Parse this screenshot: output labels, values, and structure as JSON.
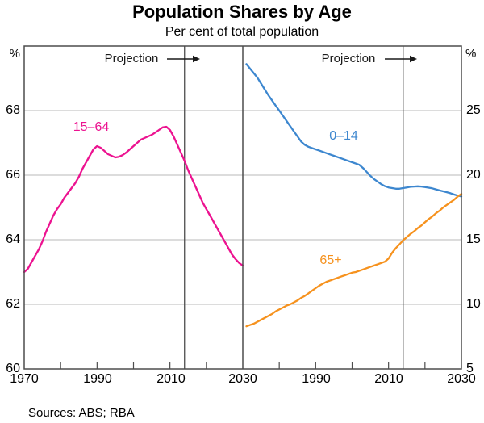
{
  "header": {
    "title": "Population Shares by Age",
    "subtitle": "Per cent of total population"
  },
  "footer": {
    "sources": "Sources: ABS; RBA"
  },
  "colors": {
    "frame": "#4d4d4d",
    "grid": "#b9b9b9",
    "projection_line": "#4d4d4d",
    "arrow": "#1a1a1a",
    "series_15_64": "#ec1390",
    "series_0_14": "#3d87cf",
    "series_65plus": "#f6921e"
  },
  "chart_data": [
    {
      "type": "line",
      "panel": "left",
      "unit": "%",
      "projection_label": "Projection",
      "projection_start": 2014,
      "xlim": [
        1970,
        2030
      ],
      "ylim": [
        60,
        70
      ],
      "y_gridlines": [
        62,
        64,
        66,
        68
      ],
      "y_tick_labels": [
        "68",
        "66",
        "64",
        "62",
        "60"
      ],
      "x_tick_labels": [
        "1970",
        "1990",
        "2010",
        "2030"
      ],
      "x_minor_ticks": [
        1980,
        1990,
        2000,
        2010,
        2020
      ],
      "series": [
        {
          "name": "15–64",
          "color": "#ec1390",
          "points": [
            [
              1970,
              63.0
            ],
            [
              1971,
              63.1
            ],
            [
              1972,
              63.3
            ],
            [
              1973,
              63.5
            ],
            [
              1974,
              63.7
            ],
            [
              1975,
              63.95
            ],
            [
              1976,
              64.25
            ],
            [
              1977,
              64.5
            ],
            [
              1978,
              64.75
            ],
            [
              1979,
              64.95
            ],
            [
              1980,
              65.1
            ],
            [
              1981,
              65.3
            ],
            [
              1982,
              65.45
            ],
            [
              1983,
              65.6
            ],
            [
              1984,
              65.75
            ],
            [
              1985,
              65.95
            ],
            [
              1986,
              66.2
            ],
            [
              1987,
              66.4
            ],
            [
              1988,
              66.6
            ],
            [
              1989,
              66.8
            ],
            [
              1990,
              66.9
            ],
            [
              1991,
              66.85
            ],
            [
              1992,
              66.75
            ],
            [
              1993,
              66.65
            ],
            [
              1994,
              66.6
            ],
            [
              1995,
              66.55
            ],
            [
              1996,
              66.57
            ],
            [
              1997,
              66.62
            ],
            [
              1998,
              66.7
            ],
            [
              1999,
              66.8
            ],
            [
              2000,
              66.9
            ],
            [
              2001,
              67.0
            ],
            [
              2002,
              67.1
            ],
            [
              2003,
              67.15
            ],
            [
              2004,
              67.2
            ],
            [
              2005,
              67.25
            ],
            [
              2006,
              67.32
            ],
            [
              2007,
              67.4
            ],
            [
              2008,
              67.48
            ],
            [
              2009,
              67.5
            ],
            [
              2010,
              67.4
            ],
            [
              2011,
              67.2
            ],
            [
              2012,
              66.95
            ],
            [
              2013,
              66.7
            ],
            [
              2014,
              66.45
            ],
            [
              2015,
              66.15
            ],
            [
              2016,
              65.9
            ],
            [
              2017,
              65.65
            ],
            [
              2018,
              65.4
            ],
            [
              2019,
              65.15
            ],
            [
              2020,
              64.95
            ],
            [
              2021,
              64.75
            ],
            [
              2022,
              64.55
            ],
            [
              2023,
              64.35
            ],
            [
              2024,
              64.15
            ],
            [
              2025,
              63.95
            ],
            [
              2026,
              63.75
            ],
            [
              2027,
              63.55
            ],
            [
              2028,
              63.4
            ],
            [
              2029,
              63.28
            ],
            [
              2030,
              63.2
            ]
          ]
        }
      ]
    },
    {
      "type": "line",
      "panel": "right",
      "unit": "%",
      "projection_label": "Projection",
      "projection_start": 2014,
      "xlim": [
        1970,
        2030
      ],
      "ylim": [
        5,
        30
      ],
      "y_gridlines": [
        10,
        15,
        20,
        25
      ],
      "y_tick_labels": [
        "25",
        "20",
        "15",
        "10",
        "5"
      ],
      "x_tick_labels": [
        "1990",
        "2010",
        "2030"
      ],
      "x_minor_ticks": [
        1980,
        1990,
        2000,
        2010,
        2020
      ],
      "series": [
        {
          "name": "0–14",
          "color": "#3d87cf",
          "points": [
            [
              1971,
              28.6
            ],
            [
              1972,
              28.25
            ],
            [
              1973,
              27.9
            ],
            [
              1974,
              27.55
            ],
            [
              1975,
              27.1
            ],
            [
              1976,
              26.65
            ],
            [
              1977,
              26.2
            ],
            [
              1978,
              25.8
            ],
            [
              1979,
              25.4
            ],
            [
              1980,
              25.0
            ],
            [
              1981,
              24.6
            ],
            [
              1982,
              24.2
            ],
            [
              1983,
              23.8
            ],
            [
              1984,
              23.4
            ],
            [
              1985,
              23.0
            ],
            [
              1986,
              22.6
            ],
            [
              1987,
              22.35
            ],
            [
              1988,
              22.2
            ],
            [
              1989,
              22.1
            ],
            [
              1990,
              22.0
            ],
            [
              1991,
              21.9
            ],
            [
              1992,
              21.8
            ],
            [
              1993,
              21.7
            ],
            [
              1994,
              21.6
            ],
            [
              1995,
              21.5
            ],
            [
              1996,
              21.4
            ],
            [
              1997,
              21.3
            ],
            [
              1998,
              21.2
            ],
            [
              1999,
              21.1
            ],
            [
              2000,
              21.0
            ],
            [
              2001,
              20.9
            ],
            [
              2002,
              20.8
            ],
            [
              2003,
              20.55
            ],
            [
              2004,
              20.25
            ],
            [
              2005,
              19.95
            ],
            [
              2006,
              19.7
            ],
            [
              2007,
              19.5
            ],
            [
              2008,
              19.3
            ],
            [
              2009,
              19.15
            ],
            [
              2010,
              19.05
            ],
            [
              2011,
              19.0
            ],
            [
              2012,
              18.95
            ],
            [
              2013,
              18.95
            ],
            [
              2014,
              19.0
            ],
            [
              2015,
              19.05
            ],
            [
              2016,
              19.1
            ],
            [
              2017,
              19.12
            ],
            [
              2018,
              19.14
            ],
            [
              2019,
              19.12
            ],
            [
              2020,
              19.08
            ],
            [
              2021,
              19.03
            ],
            [
              2022,
              18.98
            ],
            [
              2023,
              18.9
            ],
            [
              2024,
              18.82
            ],
            [
              2025,
              18.75
            ],
            [
              2026,
              18.68
            ],
            [
              2027,
              18.6
            ],
            [
              2028,
              18.5
            ],
            [
              2029,
              18.42
            ],
            [
              2030,
              18.35
            ]
          ]
        },
        {
          "name": "65+",
          "color": "#f6921e",
          "points": [
            [
              1971,
              8.3
            ],
            [
              1972,
              8.4
            ],
            [
              1973,
              8.5
            ],
            [
              1974,
              8.65
            ],
            [
              1975,
              8.8
            ],
            [
              1976,
              8.95
            ],
            [
              1977,
              9.1
            ],
            [
              1978,
              9.25
            ],
            [
              1979,
              9.45
            ],
            [
              1980,
              9.6
            ],
            [
              1981,
              9.75
            ],
            [
              1982,
              9.9
            ],
            [
              1983,
              10.0
            ],
            [
              1984,
              10.15
            ],
            [
              1985,
              10.3
            ],
            [
              1986,
              10.5
            ],
            [
              1987,
              10.65
            ],
            [
              1988,
              10.85
            ],
            [
              1989,
              11.05
            ],
            [
              1990,
              11.25
            ],
            [
              1991,
              11.45
            ],
            [
              1992,
              11.6
            ],
            [
              1993,
              11.75
            ],
            [
              1994,
              11.85
            ],
            [
              1995,
              11.95
            ],
            [
              1996,
              12.05
            ],
            [
              1997,
              12.15
            ],
            [
              1998,
              12.25
            ],
            [
              1999,
              12.35
            ],
            [
              2000,
              12.45
            ],
            [
              2001,
              12.5
            ],
            [
              2002,
              12.6
            ],
            [
              2003,
              12.7
            ],
            [
              2004,
              12.8
            ],
            [
              2005,
              12.9
            ],
            [
              2006,
              13.0
            ],
            [
              2007,
              13.1
            ],
            [
              2008,
              13.2
            ],
            [
              2009,
              13.3
            ],
            [
              2010,
              13.55
            ],
            [
              2011,
              14.0
            ],
            [
              2012,
              14.35
            ],
            [
              2013,
              14.65
            ],
            [
              2014,
              14.95
            ],
            [
              2015,
              15.2
            ],
            [
              2016,
              15.45
            ],
            [
              2017,
              15.65
            ],
            [
              2018,
              15.9
            ],
            [
              2019,
              16.1
            ],
            [
              2020,
              16.35
            ],
            [
              2021,
              16.6
            ],
            [
              2022,
              16.8
            ],
            [
              2023,
              17.05
            ],
            [
              2024,
              17.25
            ],
            [
              2025,
              17.5
            ],
            [
              2026,
              17.7
            ],
            [
              2027,
              17.9
            ],
            [
              2028,
              18.1
            ],
            [
              2029,
              18.35
            ],
            [
              2030,
              18.55
            ]
          ]
        }
      ]
    }
  ]
}
